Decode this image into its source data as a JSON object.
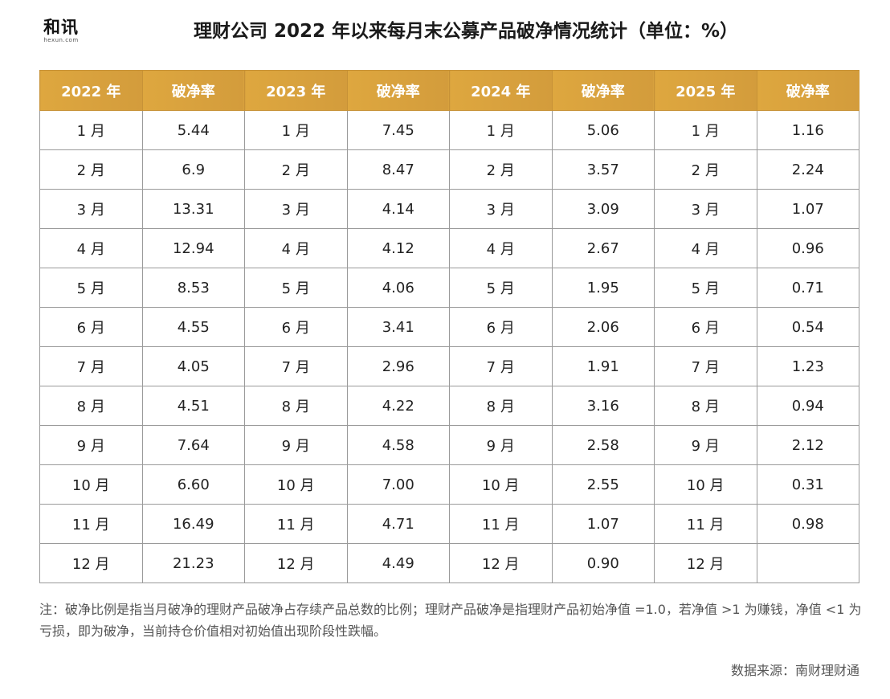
{
  "logo": {
    "main": "和讯",
    "sub": "hexun.com"
  },
  "title": "理财公司 2022 年以来每月末公募产品破净情况统计（单位：%）",
  "table": {
    "headers": [
      "2022 年",
      "破净率",
      "2023 年",
      "破净率",
      "2024 年",
      "破净率",
      "2025 年",
      "破净率"
    ],
    "rows": [
      [
        "1 月",
        "5.44",
        "1 月",
        "7.45",
        "1 月",
        "5.06",
        "1 月",
        "1.16"
      ],
      [
        "2 月",
        "6.9",
        "2 月",
        "8.47",
        "2 月",
        "3.57",
        "2 月",
        "2.24"
      ],
      [
        "3 月",
        "13.31",
        "3 月",
        "4.14",
        "3 月",
        "3.09",
        "3 月",
        "1.07"
      ],
      [
        "4 月",
        "12.94",
        "4 月",
        "4.12",
        "4 月",
        "2.67",
        "4 月",
        "0.96"
      ],
      [
        "5 月",
        "8.53",
        "5 月",
        "4.06",
        "5 月",
        "1.95",
        "5 月",
        "0.71"
      ],
      [
        "6 月",
        "4.55",
        "6 月",
        "3.41",
        "6 月",
        "2.06",
        "6 月",
        "0.54"
      ],
      [
        "7 月",
        "4.05",
        "7 月",
        "2.96",
        "7 月",
        "1.91",
        "7 月",
        "1.23"
      ],
      [
        "8 月",
        "4.51",
        "8 月",
        "4.22",
        "8 月",
        "3.16",
        "8 月",
        "0.94"
      ],
      [
        "9 月",
        "7.64",
        "9 月",
        "4.58",
        "9 月",
        "2.58",
        "9 月",
        "2.12"
      ],
      [
        "10 月",
        "6.60",
        "10 月",
        "7.00",
        "10 月",
        "2.55",
        "10 月",
        "0.31"
      ],
      [
        "11 月",
        "16.49",
        "11 月",
        "4.71",
        "11 月",
        "1.07",
        "11 月",
        "0.98"
      ],
      [
        "12 月",
        "21.23",
        "12 月",
        "4.49",
        "12 月",
        "0.90",
        "12 月",
        ""
      ]
    ]
  },
  "note": "注：破净比例是指当月破净的理财产品破净占存续产品总数的比例；理财产品破净是指理财产品初始净值 =1.0，若净值 >1 为赚钱，净值 <1 为亏损，即为破净，当前持仓价值相对初始值出现阶段性跌幅。",
  "source": "数据来源：南财理财通",
  "colors": {
    "header_background": "#d9a23f",
    "header_text": "#ffffff",
    "grid_border": "#9a9a9a"
  }
}
